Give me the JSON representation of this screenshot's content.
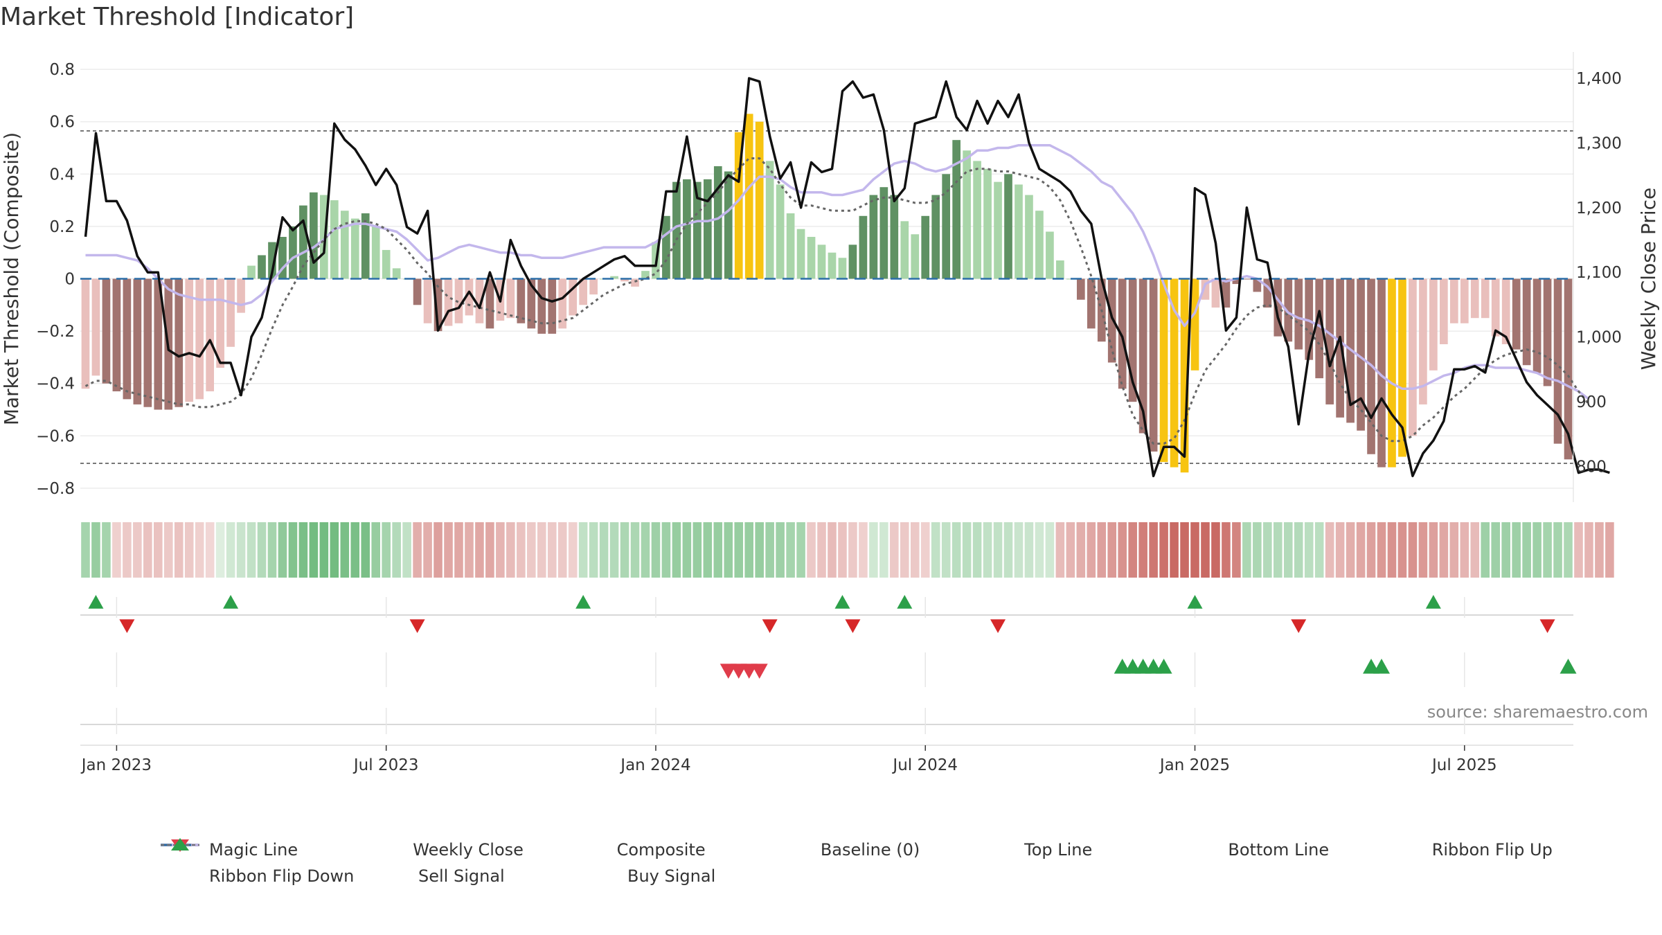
{
  "title": "Market Threshold [Indicator]",
  "source": "source: sharemaestro.com",
  "colors": {
    "magic_line": "#666666",
    "weekly_close": "#111111",
    "composite": "#c3b7ec",
    "baseline": "#2b6ea8",
    "threshold": "#777777",
    "bar_dark_green": "#5f9163",
    "bar_light_green": "#a9d5a9",
    "bar_dark_red": "#a27470",
    "bar_light_red": "#e9bfbc",
    "bar_gold": "#f7c411",
    "ribbon_up": "#2ca049",
    "ribbon_down": "#d62728",
    "sell": "#e03c4a",
    "buy": "#2ca049"
  },
  "legend": [
    {
      "key": "magic",
      "label": "Magic Line"
    },
    {
      "key": "close",
      "label": "Weekly Close"
    },
    {
      "key": "composite",
      "label": "Composite"
    },
    {
      "key": "baseline",
      "label": "Baseline (0)"
    },
    {
      "key": "top",
      "label": "Top Line"
    },
    {
      "key": "bottom",
      "label": "Bottom Line"
    },
    {
      "key": "flipup",
      "label": "Ribbon Flip Up"
    },
    {
      "key": "flipdown",
      "label": "Ribbon Flip Down"
    },
    {
      "key": "sell",
      "label": "Sell Signal"
    },
    {
      "key": "buy",
      "label": "Buy Signal"
    }
  ],
  "chart_data": {
    "type": "bar",
    "title": "Market Threshold [Indicator]",
    "ylabel": "Market Threshold (Composite)",
    "y2label": "Weekly Close Price",
    "ylim": [
      -0.84,
      0.84
    ],
    "y2lim": [
      750,
      1430
    ],
    "yticks": [
      "0.8",
      "0.6",
      "0.4",
      "0.2",
      "0",
      "−0.2",
      "−0.4",
      "−0.6",
      "−0.8"
    ],
    "ytick_values": [
      0.8,
      0.6,
      0.4,
      0.2,
      0,
      -0.2,
      -0.4,
      -0.6,
      -0.8
    ],
    "y2ticks": [
      "1,400",
      "1,300",
      "1,200",
      "1,100",
      "1,000",
      "900",
      "800"
    ],
    "y2tick_values": [
      1400,
      1300,
      1200,
      1100,
      1000,
      900,
      800
    ],
    "xticks": [
      "Jan 2023",
      "Jul 2023",
      "Jan 2024",
      "Jul 2024",
      "Jan 2025",
      "Jul 2025"
    ],
    "xtick_weeks": [
      3,
      29,
      55,
      81,
      107,
      133
    ],
    "top_line": 0.565,
    "bottom_line": -0.705,
    "composite_bars": [
      -0.42,
      -0.37,
      -0.4,
      -0.43,
      -0.46,
      -0.48,
      -0.49,
      -0.5,
      -0.5,
      -0.49,
      -0.47,
      -0.46,
      -0.43,
      -0.34,
      -0.26,
      -0.13,
      0.05,
      0.09,
      0.14,
      0.16,
      0.2,
      0.28,
      0.33,
      0.32,
      0.3,
      0.26,
      0.23,
      0.25,
      0.2,
      0.11,
      0.04,
      0.0,
      -0.1,
      -0.17,
      -0.2,
      -0.18,
      -0.17,
      -0.14,
      -0.17,
      -0.19,
      -0.16,
      -0.15,
      -0.17,
      -0.19,
      -0.21,
      -0.21,
      -0.19,
      -0.14,
      -0.1,
      -0.06,
      0.0,
      0.01,
      -0.01,
      -0.03,
      0.03,
      0.14,
      0.24,
      0.37,
      0.38,
      0.37,
      0.38,
      0.43,
      0.41,
      0.56,
      0.63,
      0.6,
      0.45,
      0.36,
      0.25,
      0.19,
      0.16,
      0.13,
      0.1,
      0.08,
      0.13,
      0.24,
      0.32,
      0.35,
      0.32,
      0.22,
      0.17,
      0.24,
      0.32,
      0.4,
      0.53,
      0.49,
      0.45,
      0.42,
      0.37,
      0.4,
      0.36,
      0.32,
      0.26,
      0.18,
      0.07,
      0.0,
      -0.08,
      -0.19,
      -0.24,
      -0.32,
      -0.42,
      -0.47,
      -0.59,
      -0.66,
      -0.7,
      -0.72,
      -0.74,
      -0.35,
      -0.08,
      -0.11,
      -0.11,
      -0.02,
      0.0,
      -0.05,
      -0.11,
      -0.22,
      -0.24,
      -0.27,
      -0.31,
      -0.38,
      -0.48,
      -0.53,
      -0.55,
      -0.58,
      -0.67,
      -0.72,
      -0.72,
      -0.68,
      -0.6,
      -0.48,
      -0.35,
      -0.25,
      -0.17,
      -0.17,
      -0.15,
      -0.15,
      -0.22,
      -0.25,
      -0.27,
      -0.33,
      -0.36,
      -0.41,
      -0.63,
      -0.69
    ],
    "bar_colors": [
      "LR",
      "LR",
      "DR",
      "DR",
      "DR",
      "DR",
      "DR",
      "DR",
      "DR",
      "DR",
      "LR",
      "LR",
      "LR",
      "LR",
      "LR",
      "LR",
      "LG",
      "DG",
      "DG",
      "DG",
      "DG",
      "DG",
      "DG",
      "LG",
      "LG",
      "LG",
      "LG",
      "DG",
      "LG",
      "LG",
      "LG",
      "LG",
      "DR",
      "LR",
      "DR",
      "LR",
      "LR",
      "LR",
      "LR",
      "DR",
      "LR",
      "LR",
      "DR",
      "DR",
      "DR",
      "DR",
      "LR",
      "LR",
      "LR",
      "LR",
      "LG",
      "LG",
      "LR",
      "LR",
      "LG",
      "LG",
      "DG",
      "DG",
      "DG",
      "DG",
      "DG",
      "DG",
      "DG",
      "GD",
      "GD",
      "GD",
      "LG",
      "LG",
      "LG",
      "LG",
      "LG",
      "LG",
      "LG",
      "LG",
      "DG",
      "DG",
      "DG",
      "DG",
      "DG",
      "LG",
      "LG",
      "DG",
      "DG",
      "DG",
      "DG",
      "LG",
      "LG",
      "LG",
      "LG",
      "DG",
      "LG",
      "LG",
      "LG",
      "LG",
      "LG",
      "LG",
      "DR",
      "DR",
      "DR",
      "DR",
      "DR",
      "DR",
      "DR",
      "DR",
      "GD",
      "GD",
      "GD",
      "GD",
      "LR",
      "LR",
      "DR",
      "DR",
      "DR",
      "DR",
      "DR",
      "DR",
      "DR",
      "DR",
      "DR",
      "DR",
      "DR",
      "DR",
      "DR",
      "DR",
      "DR",
      "DR",
      "GD",
      "GD",
      "LR",
      "LR",
      "LR",
      "LR",
      "LR",
      "LR",
      "LR",
      "LR",
      "LR",
      "LR",
      "DR",
      "DR",
      "DR",
      "DR",
      "DR",
      "DR",
      "DR",
      "GD"
    ],
    "weekly_close": [
      1155,
      1315,
      1210,
      1210,
      1180,
      1125,
      1100,
      1100,
      980,
      970,
      975,
      970,
      995,
      960,
      960,
      910,
      1000,
      1030,
      1100,
      1185,
      1165,
      1180,
      1115,
      1130,
      1330,
      1305,
      1290,
      1265,
      1235,
      1260,
      1235,
      1170,
      1160,
      1195,
      1010,
      1040,
      1045,
      1070,
      1045,
      1100,
      1055,
      1150,
      1110,
      1080,
      1060,
      1055,
      1060,
      1075,
      1090,
      1100,
      1110,
      1120,
      1125,
      1110,
      1110,
      1110,
      1225,
      1225,
      1310,
      1215,
      1210,
      1230,
      1250,
      1240,
      1400,
      1395,
      1310,
      1245,
      1270,
      1200,
      1270,
      1255,
      1260,
      1380,
      1395,
      1370,
      1375,
      1320,
      1210,
      1230,
      1330,
      1335,
      1340,
      1395,
      1340,
      1320,
      1365,
      1330,
      1365,
      1340,
      1375,
      1300,
      1260,
      1250,
      1240,
      1225,
      1195,
      1175,
      1090,
      1030,
      1000,
      930,
      885,
      785,
      830,
      830,
      815,
      1230,
      1220,
      1145,
      1010,
      1030,
      1200,
      1120,
      1115,
      1030,
      985,
      865,
      975,
      1040,
      955,
      1000,
      895,
      905,
      875,
      905,
      880,
      860,
      785,
      820,
      840,
      870,
      950,
      950,
      955,
      945,
      1010,
      1000,
      965,
      930,
      910,
      895,
      880,
      850,
      790,
      795,
      795,
      790
    ],
    "magic_line": [
      -0.41,
      -0.39,
      -0.39,
      -0.41,
      -0.43,
      -0.44,
      -0.45,
      -0.46,
      -0.47,
      -0.48,
      -0.48,
      -0.49,
      -0.49,
      -0.48,
      -0.47,
      -0.44,
      -0.38,
      -0.29,
      -0.19,
      -0.1,
      -0.03,
      0.05,
      0.1,
      0.15,
      0.19,
      0.21,
      0.22,
      0.22,
      0.21,
      0.19,
      0.15,
      0.11,
      0.06,
      0.02,
      -0.03,
      -0.07,
      -0.09,
      -0.1,
      -0.11,
      -0.12,
      -0.13,
      -0.14,
      -0.15,
      -0.16,
      -0.17,
      -0.17,
      -0.16,
      -0.15,
      -0.12,
      -0.09,
      -0.06,
      -0.04,
      -0.02,
      -0.01,
      0.0,
      0.02,
      0.07,
      0.15,
      0.21,
      0.25,
      0.29,
      0.33,
      0.38,
      0.42,
      0.46,
      0.46,
      0.42,
      0.36,
      0.31,
      0.28,
      0.28,
      0.27,
      0.26,
      0.26,
      0.26,
      0.28,
      0.3,
      0.31,
      0.31,
      0.3,
      0.29,
      0.29,
      0.3,
      0.33,
      0.37,
      0.41,
      0.42,
      0.42,
      0.41,
      0.41,
      0.4,
      0.39,
      0.38,
      0.35,
      0.3,
      0.22,
      0.12,
      0.01,
      -0.12,
      -0.27,
      -0.41,
      -0.52,
      -0.58,
      -0.63,
      -0.63,
      -0.61,
      -0.54,
      -0.44,
      -0.35,
      -0.3,
      -0.25,
      -0.19,
      -0.14,
      -0.11,
      -0.1,
      -0.11,
      -0.14,
      -0.17,
      -0.2,
      -0.25,
      -0.32,
      -0.4,
      -0.46,
      -0.5,
      -0.55,
      -0.6,
      -0.62,
      -0.62,
      -0.6,
      -0.56,
      -0.53,
      -0.49,
      -0.45,
      -0.42,
      -0.38,
      -0.34,
      -0.31,
      -0.29,
      -0.28,
      -0.27,
      -0.28,
      -0.3,
      -0.33,
      -0.37,
      -0.43,
      -0.48
    ],
    "composite_line": [
      0.09,
      0.09,
      0.09,
      0.09,
      0.08,
      0.07,
      0.04,
      0.0,
      -0.04,
      -0.06,
      -0.07,
      -0.08,
      -0.08,
      -0.08,
      -0.09,
      -0.1,
      -0.09,
      -0.06,
      -0.01,
      0.04,
      0.08,
      0.1,
      0.12,
      0.15,
      0.19,
      0.2,
      0.21,
      0.21,
      0.2,
      0.19,
      0.18,
      0.15,
      0.11,
      0.07,
      0.08,
      0.1,
      0.12,
      0.13,
      0.12,
      0.11,
      0.1,
      0.1,
      0.09,
      0.09,
      0.08,
      0.08,
      0.08,
      0.09,
      0.1,
      0.11,
      0.12,
      0.12,
      0.12,
      0.12,
      0.12,
      0.14,
      0.17,
      0.2,
      0.21,
      0.22,
      0.22,
      0.23,
      0.26,
      0.3,
      0.35,
      0.39,
      0.39,
      0.38,
      0.35,
      0.33,
      0.33,
      0.33,
      0.32,
      0.32,
      0.33,
      0.34,
      0.38,
      0.41,
      0.44,
      0.45,
      0.44,
      0.42,
      0.41,
      0.42,
      0.44,
      0.46,
      0.49,
      0.49,
      0.5,
      0.5,
      0.51,
      0.51,
      0.51,
      0.51,
      0.49,
      0.47,
      0.44,
      0.41,
      0.37,
      0.35,
      0.3,
      0.25,
      0.18,
      0.09,
      -0.02,
      -0.12,
      -0.18,
      -0.13,
      -0.02,
      0.0,
      -0.01,
      0.0,
      0.01,
      0.0,
      -0.03,
      -0.08,
      -0.13,
      -0.15,
      -0.16,
      -0.18,
      -0.21,
      -0.24,
      -0.27,
      -0.3,
      -0.33,
      -0.37,
      -0.4,
      -0.42,
      -0.42,
      -0.41,
      -0.39,
      -0.37,
      -0.36,
      -0.34,
      -0.33,
      -0.33,
      -0.34,
      -0.34,
      -0.34,
      -0.35,
      -0.36,
      -0.38,
      -0.39,
      -0.41,
      -0.43,
      -0.46
    ],
    "ribbon": [
      0.5,
      0.6,
      0.5,
      -0.15,
      -0.2,
      -0.2,
      -0.25,
      -0.25,
      -0.2,
      -0.25,
      -0.2,
      -0.15,
      -0.1,
      0.1,
      0.2,
      0.25,
      0.3,
      0.4,
      0.5,
      0.65,
      0.75,
      0.8,
      0.85,
      0.85,
      0.85,
      0.8,
      0.8,
      0.8,
      0.6,
      0.5,
      0.4,
      0.3,
      -0.4,
      -0.4,
      -0.5,
      -0.45,
      -0.45,
      -0.4,
      -0.45,
      -0.45,
      -0.35,
      -0.3,
      -0.25,
      -0.2,
      -0.2,
      -0.2,
      -0.2,
      -0.15,
      0.3,
      0.35,
      0.4,
      0.4,
      0.45,
      0.45,
      0.5,
      0.55,
      0.55,
      0.6,
      0.6,
      0.6,
      0.6,
      0.6,
      0.6,
      0.6,
      0.6,
      0.6,
      0.55,
      0.55,
      0.5,
      0.5,
      -0.2,
      -0.25,
      -0.3,
      -0.25,
      -0.2,
      -0.15,
      0.2,
      0.2,
      -0.2,
      -0.2,
      -0.2,
      -0.15,
      0.3,
      0.3,
      0.35,
      0.35,
      0.35,
      0.3,
      0.3,
      0.3,
      0.25,
      0.25,
      0.2,
      0.2,
      -0.3,
      -0.35,
      -0.4,
      -0.45,
      -0.5,
      -0.55,
      -0.6,
      -0.7,
      -0.75,
      -0.8,
      -0.85,
      -0.9,
      -0.9,
      -0.9,
      -0.9,
      -0.9,
      -0.8,
      -0.7,
      0.45,
      0.45,
      0.4,
      0.4,
      0.4,
      0.4,
      0.35,
      0.35,
      -0.3,
      -0.35,
      -0.4,
      -0.45,
      -0.5,
      -0.55,
      -0.6,
      -0.6,
      -0.6,
      -0.55,
      -0.5,
      -0.45,
      -0.4,
      -0.35,
      -0.3,
      0.55,
      0.55,
      0.55,
      0.55,
      0.55,
      0.55,
      0.5,
      0.5,
      0.45,
      -0.3,
      -0.35,
      -0.4,
      -0.45
    ],
    "ribbon_flip_up_weeks": [
      1,
      14,
      48,
      73,
      79,
      107,
      130
    ],
    "ribbon_flip_down_weeks": [
      4,
      32,
      66,
      74,
      88,
      117,
      141
    ],
    "sell_signal_weeks": [
      62,
      63,
      64,
      65
    ],
    "buy_signal_weeks": [
      100,
      101,
      102,
      103,
      104,
      124,
      125,
      143
    ],
    "n_weeks": 144
  }
}
